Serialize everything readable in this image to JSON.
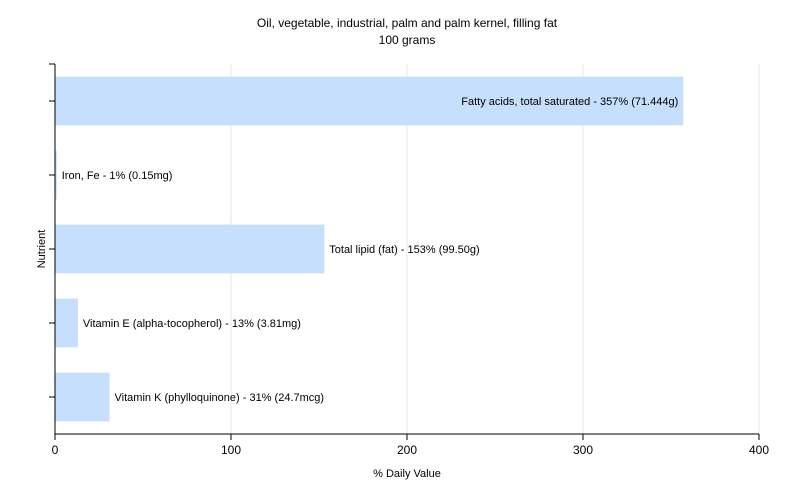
{
  "chart_data": {
    "type": "bar",
    "orientation": "horizontal",
    "title": "Oil, vegetable, industrial, palm and palm kernel, filling fat",
    "subtitle": "100 grams",
    "xlabel": "% Daily Value",
    "ylabel": "Nutrient",
    "xlim": [
      0,
      400
    ],
    "x_ticks": [
      0,
      100,
      200,
      300,
      400
    ],
    "grid": true,
    "legend": "none",
    "categories": [
      "Fatty acids, total saturated",
      "Iron, Fe",
      "Total lipid (fat)",
      "Vitamin E (alpha-tocopherol)",
      "Vitamin K (phylloquinone)"
    ],
    "values": [
      357,
      1,
      153,
      13,
      31
    ],
    "data_labels": [
      "Fatty acids, total saturated - 357% (71.444g)",
      "Iron, Fe - 1% (0.15mg)",
      "Total lipid (fat) - 153% (99.50g)",
      "Vitamin E (alpha-tocopherol) - 13% (3.81mg)",
      "Vitamin K (phylloquinone) - 31% (24.7mcg)"
    ],
    "colors": {
      "bar": "#c6dffd",
      "grid": "#e4e4e4",
      "axis": "#000000"
    }
  }
}
